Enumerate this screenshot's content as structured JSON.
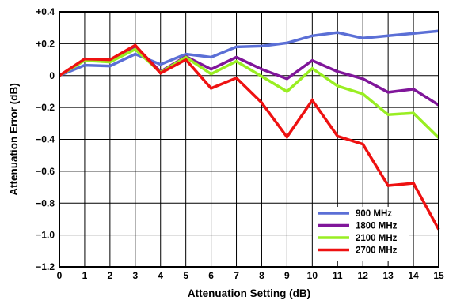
{
  "chart_data": {
    "type": "line",
    "title": "",
    "xlabel": "Attenuation Setting (dB)",
    "ylabel": "Attenuation Error (dB)",
    "xlim": [
      0,
      15
    ],
    "ylim": [
      -1.2,
      0.4
    ],
    "x": [
      0,
      1,
      2,
      3,
      4,
      5,
      6,
      7,
      8,
      9,
      10,
      11,
      12,
      13,
      14,
      15
    ],
    "x_ticks": [
      0,
      1,
      2,
      3,
      4,
      5,
      6,
      7,
      8,
      9,
      10,
      11,
      12,
      13,
      14,
      15
    ],
    "x_tick_labels": [
      "0",
      "1",
      "2",
      "3",
      "4",
      "5",
      "6",
      "7",
      "8",
      "9",
      "10",
      "11",
      "12",
      "13",
      "14",
      "15"
    ],
    "y_ticks": [
      0.4,
      0.2,
      0,
      -0.2,
      -0.4,
      -0.6,
      -0.8,
      -1.0,
      -1.2
    ],
    "y_tick_labels": [
      "+0.4",
      "+0.2",
      "0",
      "−0.2",
      "−0.4",
      "−0.6",
      "−0.8",
      "−1.0",
      "−1.2"
    ],
    "grid": true,
    "legend_position": "bottom-right",
    "series": [
      {
        "name": "900 MHz",
        "color": "#5b6fd6",
        "values": [
          0,
          0.065,
          0.06,
          0.135,
          0.07,
          0.135,
          0.115,
          0.18,
          0.185,
          0.205,
          0.25,
          0.27,
          0.235,
          0.25,
          0.265,
          0.28
        ]
      },
      {
        "name": "1800 MHz",
        "color": "#80169a",
        "values": [
          0,
          0.1,
          0.095,
          0.185,
          0.025,
          0.12,
          0.04,
          0.115,
          0.04,
          -0.02,
          0.095,
          0.025,
          -0.02,
          -0.105,
          -0.085,
          -0.185
        ]
      },
      {
        "name": "2100 MHz",
        "color": "#99ee22",
        "values": [
          0,
          0.095,
          0.085,
          0.165,
          0.02,
          0.115,
          0.01,
          0.09,
          -0.005,
          -0.1,
          0.045,
          -0.065,
          -0.115,
          -0.245,
          -0.235,
          -0.39
        ]
      },
      {
        "name": "2700 MHz",
        "color": "#ee1111",
        "values": [
          0,
          0.105,
          0.1,
          0.19,
          0.015,
          0.1,
          -0.08,
          -0.015,
          -0.17,
          -0.385,
          -0.155,
          -0.38,
          -0.43,
          -0.69,
          -0.675,
          -0.965
        ]
      }
    ]
  }
}
